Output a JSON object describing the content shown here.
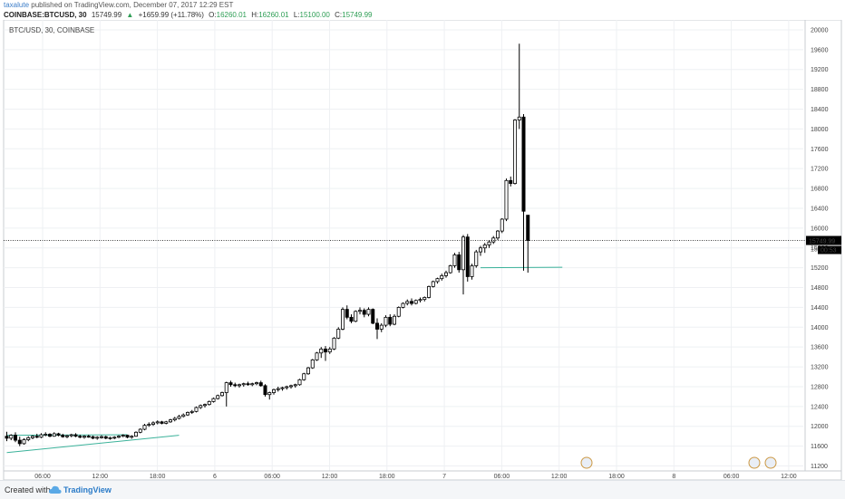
{
  "header": {
    "username": "taxalute",
    "published_text": "published on TradingView.com, December 07, 2017 12:29 EST",
    "symbol": "COINBASE:BTCUSD, 30",
    "last": "15749.99",
    "change_arrow": "▲",
    "change": "+1659.99 (+11.78%)",
    "open_label": "O:",
    "open": "16260.01",
    "high_label": "H:",
    "high": "16260.01",
    "low_label": "L:",
    "low": "15100.00",
    "close_label": "C:",
    "close": "15749.99"
  },
  "footer": {
    "created_label": "Created with",
    "brand": "TradingView"
  },
  "chart_data": {
    "type": "candlestick",
    "title": "BTC/USD, 30, COINBASE",
    "ylim": [
      11100,
      20200
    ],
    "y_ticks": [
      11200,
      11600,
      12000,
      12400,
      12800,
      13200,
      13600,
      14000,
      14400,
      14800,
      15200,
      15600,
      16000,
      16400,
      16800,
      17200,
      17600,
      18000,
      18400,
      18800,
      19200,
      19600,
      20000
    ],
    "x_ticks": [
      "06:00",
      "12:00",
      "18:00",
      "6",
      "06:00",
      "12:00",
      "18:00",
      "7",
      "06:00",
      "12:00",
      "18:00",
      "8",
      "06:00",
      "12:00"
    ],
    "last_price_label": "15749.99",
    "countdown_label": "00:53",
    "partial_label": "15",
    "candles": [
      [
        11800,
        11890,
        11700,
        11760
      ],
      [
        11760,
        11840,
        11720,
        11820
      ],
      [
        11820,
        11880,
        11680,
        11720
      ],
      [
        11720,
        11790,
        11600,
        11650
      ],
      [
        11650,
        11760,
        11630,
        11730
      ],
      [
        11730,
        11800,
        11700,
        11770
      ],
      [
        11770,
        11820,
        11740,
        11800
      ],
      [
        11800,
        11850,
        11760,
        11780
      ],
      [
        11780,
        11860,
        11760,
        11830
      ],
      [
        11830,
        11880,
        11800,
        11840
      ],
      [
        11840,
        11860,
        11780,
        11800
      ],
      [
        11800,
        11880,
        11790,
        11850
      ],
      [
        11850,
        11870,
        11800,
        11820
      ],
      [
        11820,
        11850,
        11770,
        11790
      ],
      [
        11790,
        11830,
        11760,
        11810
      ],
      [
        11810,
        11850,
        11780,
        11830
      ],
      [
        11830,
        11860,
        11780,
        11800
      ],
      [
        11800,
        11830,
        11760,
        11780
      ],
      [
        11780,
        11820,
        11750,
        11800
      ],
      [
        11800,
        11830,
        11770,
        11790
      ],
      [
        11790,
        11810,
        11740,
        11760
      ],
      [
        11760,
        11800,
        11730,
        11780
      ],
      [
        11780,
        11820,
        11750,
        11790
      ],
      [
        11790,
        11810,
        11740,
        11760
      ],
      [
        11760,
        11790,
        11730,
        11770
      ],
      [
        11770,
        11800,
        11740,
        11780
      ],
      [
        11780,
        11820,
        11760,
        11800
      ],
      [
        11800,
        11840,
        11780,
        11820
      ],
      [
        11820,
        11830,
        11760,
        11780
      ],
      [
        11780,
        11820,
        11750,
        11800
      ],
      [
        11800,
        11900,
        11790,
        11880
      ],
      [
        11880,
        11960,
        11860,
        11940
      ],
      [
        11940,
        12050,
        11920,
        12020
      ],
      [
        12020,
        12080,
        11990,
        12040
      ],
      [
        12040,
        12100,
        12010,
        12070
      ],
      [
        12070,
        12120,
        12040,
        12090
      ],
      [
        12090,
        12110,
        12040,
        12060
      ],
      [
        12060,
        12110,
        12040,
        12090
      ],
      [
        12090,
        12150,
        12070,
        12130
      ],
      [
        12130,
        12190,
        12100,
        12160
      ],
      [
        12160,
        12230,
        12140,
        12200
      ],
      [
        12200,
        12260,
        12180,
        12230
      ],
      [
        12230,
        12300,
        12210,
        12280
      ],
      [
        12280,
        12330,
        12250,
        12300
      ],
      [
        12300,
        12400,
        12280,
        12380
      ],
      [
        12380,
        12440,
        12350,
        12420
      ],
      [
        12420,
        12460,
        12380,
        12440
      ],
      [
        12440,
        12520,
        12420,
        12500
      ],
      [
        12500,
        12580,
        12480,
        12560
      ],
      [
        12560,
        12640,
        12540,
        12620
      ],
      [
        12620,
        12700,
        12600,
        12680
      ],
      [
        12680,
        12900,
        12400,
        12880
      ],
      [
        12880,
        12920,
        12800,
        12840
      ],
      [
        12840,
        12880,
        12790,
        12820
      ],
      [
        12820,
        12860,
        12780,
        12840
      ],
      [
        12840,
        12880,
        12800,
        12860
      ],
      [
        12860,
        12900,
        12820,
        12840
      ],
      [
        12840,
        12880,
        12810,
        12860
      ],
      [
        12860,
        12900,
        12830,
        12880
      ],
      [
        12880,
        12920,
        12800,
        12820
      ],
      [
        12820,
        12850,
        12600,
        12640
      ],
      [
        12640,
        12700,
        12540,
        12680
      ],
      [
        12680,
        12760,
        12640,
        12740
      ],
      [
        12740,
        12800,
        12700,
        12760
      ],
      [
        12760,
        12800,
        12720,
        12780
      ],
      [
        12780,
        12820,
        12740,
        12800
      ],
      [
        12800,
        12840,
        12760,
        12820
      ],
      [
        12820,
        12860,
        12780,
        12840
      ],
      [
        12840,
        12960,
        12820,
        12940
      ],
      [
        12940,
        13080,
        12920,
        13060
      ],
      [
        13060,
        13200,
        13040,
        13180
      ],
      [
        13180,
        13360,
        13160,
        13340
      ],
      [
        13340,
        13500,
        13320,
        13480
      ],
      [
        13480,
        13600,
        13380,
        13560
      ],
      [
        13560,
        13620,
        13320,
        13500
      ],
      [
        13500,
        13600,
        13460,
        13560
      ],
      [
        13560,
        13800,
        13540,
        13780
      ],
      [
        13780,
        14000,
        13760,
        13960
      ],
      [
        13960,
        14400,
        13940,
        14360
      ],
      [
        14360,
        14440,
        14160,
        14200
      ],
      [
        14200,
        14260,
        14080,
        14120
      ],
      [
        14120,
        14340,
        14100,
        14320
      ],
      [
        14320,
        14400,
        14260,
        14340
      ],
      [
        14340,
        14380,
        14200,
        14260
      ],
      [
        14260,
        14400,
        14220,
        14360
      ],
      [
        14360,
        14380,
        14060,
        14080
      ],
      [
        14080,
        14180,
        13760,
        13960
      ],
      [
        13960,
        14080,
        13900,
        14040
      ],
      [
        14040,
        14240,
        14000,
        14200
      ],
      [
        14200,
        14260,
        14020,
        14060
      ],
      [
        14060,
        14260,
        14040,
        14220
      ],
      [
        14220,
        14420,
        14200,
        14400
      ],
      [
        14400,
        14500,
        14380,
        14480
      ],
      [
        14480,
        14560,
        14440,
        14520
      ],
      [
        14520,
        14580,
        14440,
        14480
      ],
      [
        14480,
        14560,
        14460,
        14540
      ],
      [
        14540,
        14600,
        14500,
        14560
      ],
      [
        14560,
        14620,
        14520,
        14600
      ],
      [
        14600,
        14840,
        14580,
        14820
      ],
      [
        14820,
        14940,
        14800,
        14920
      ],
      [
        14920,
        15000,
        14880,
        14980
      ],
      [
        14980,
        15080,
        14940,
        15040
      ],
      [
        15040,
        15140,
        15000,
        15100
      ],
      [
        15100,
        15260,
        15080,
        15240
      ],
      [
        15240,
        15500,
        15200,
        15460
      ],
      [
        15460,
        15520,
        15100,
        15160
      ],
      [
        15160,
        15860,
        14660,
        15820
      ],
      [
        15820,
        15880,
        14920,
        15020
      ],
      [
        15020,
        15280,
        14960,
        15240
      ],
      [
        15240,
        15560,
        15200,
        15520
      ],
      [
        15520,
        15640,
        15440,
        15600
      ],
      [
        15600,
        15700,
        15500,
        15660
      ],
      [
        15660,
        15760,
        15600,
        15720
      ],
      [
        15720,
        15840,
        15680,
        15800
      ],
      [
        15800,
        15960,
        15760,
        15940
      ],
      [
        15940,
        16200,
        15900,
        16180
      ],
      [
        16180,
        17000,
        16140,
        16960
      ],
      [
        16960,
        17040,
        16840,
        16900
      ],
      [
        16900,
        18200,
        16880,
        18180
      ],
      [
        18180,
        19720,
        18000,
        18240
      ],
      [
        18240,
        18300,
        15140,
        16340
      ],
      [
        16260,
        16260,
        15100,
        15750
      ]
    ],
    "lines": [
      {
        "from": [
          0,
          11470
        ],
        "to": [
          40,
          11820
        ],
        "color": "#3bb29a"
      },
      {
        "from": [
          0,
          11820
        ],
        "to": [
          28,
          11830
        ],
        "color": "#3bb29a"
      },
      {
        "from": [
          110,
          15200
        ],
        "to": [
          129,
          15210
        ],
        "color": "#3bb29a"
      }
    ]
  }
}
